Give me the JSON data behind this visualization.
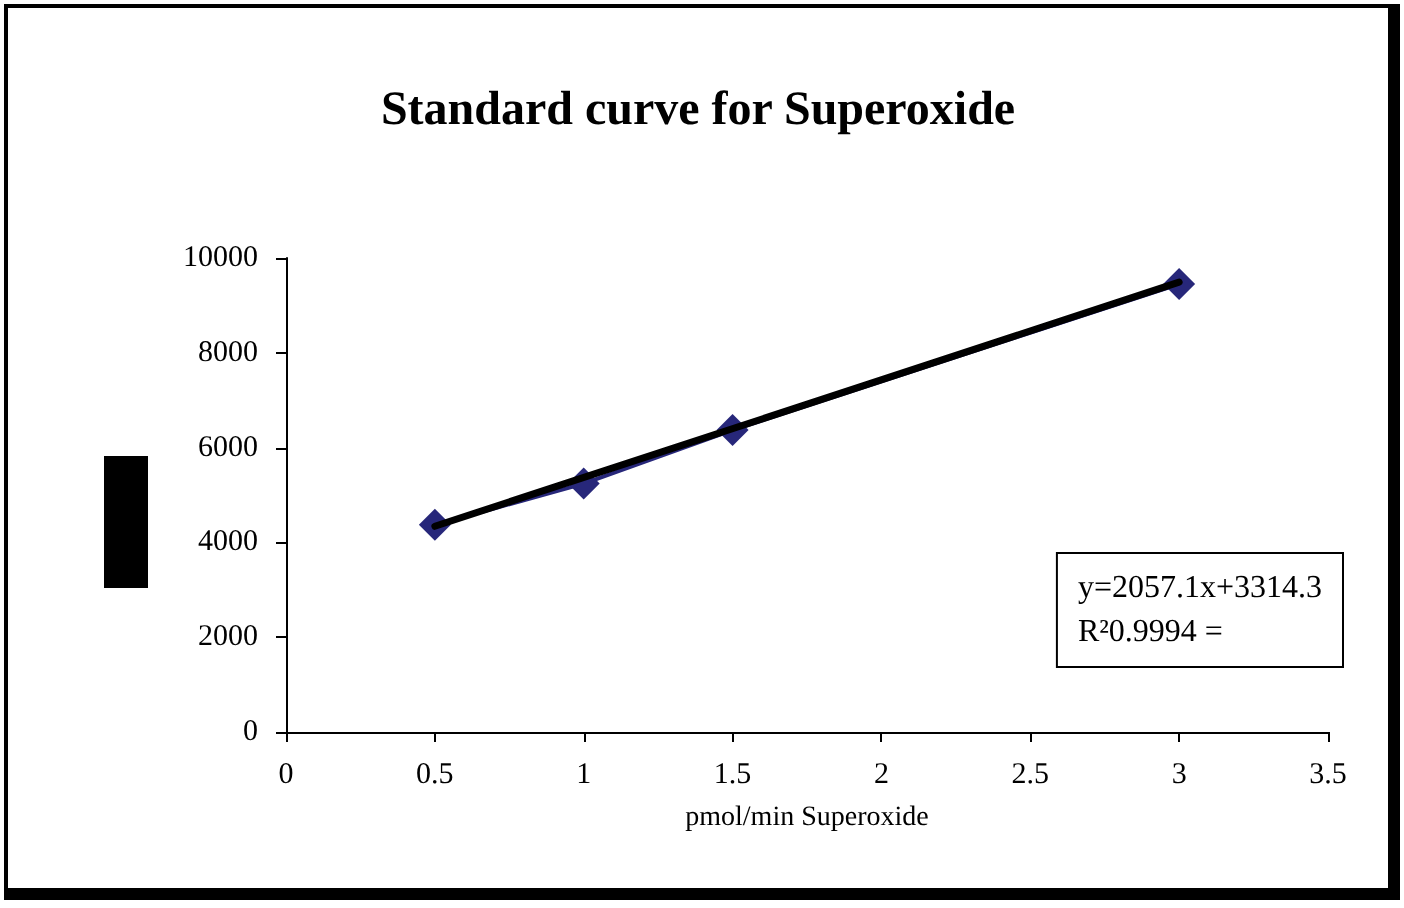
{
  "chart_data": {
    "type": "line",
    "title": "Standard curve for Superoxide",
    "xlabel": "pmol/min Superoxide",
    "x": [
      0.5,
      1,
      1.5,
      3
    ],
    "series": [
      {
        "color": "#27277a",
        "values": [
          4370,
          5240,
          6370,
          9450
        ],
        "marker": "diamond"
      },
      {
        "color": "#000000",
        "x": [
          0.5,
          3
        ],
        "values": [
          4340,
          9490
        ],
        "marker": "none"
      }
    ],
    "xlim": [
      0,
      3.5
    ],
    "xticks": [
      0,
      0.5,
      1,
      1.5,
      2,
      2.5,
      3,
      3.5
    ],
    "ylim": [
      0,
      10000
    ],
    "yticks": [
      0,
      2000,
      4000,
      6000,
      8000,
      10000
    ],
    "annotations": [
      "y=2057.1x+3314.3",
      "R²0.9994 ="
    ],
    "grid": false
  }
}
